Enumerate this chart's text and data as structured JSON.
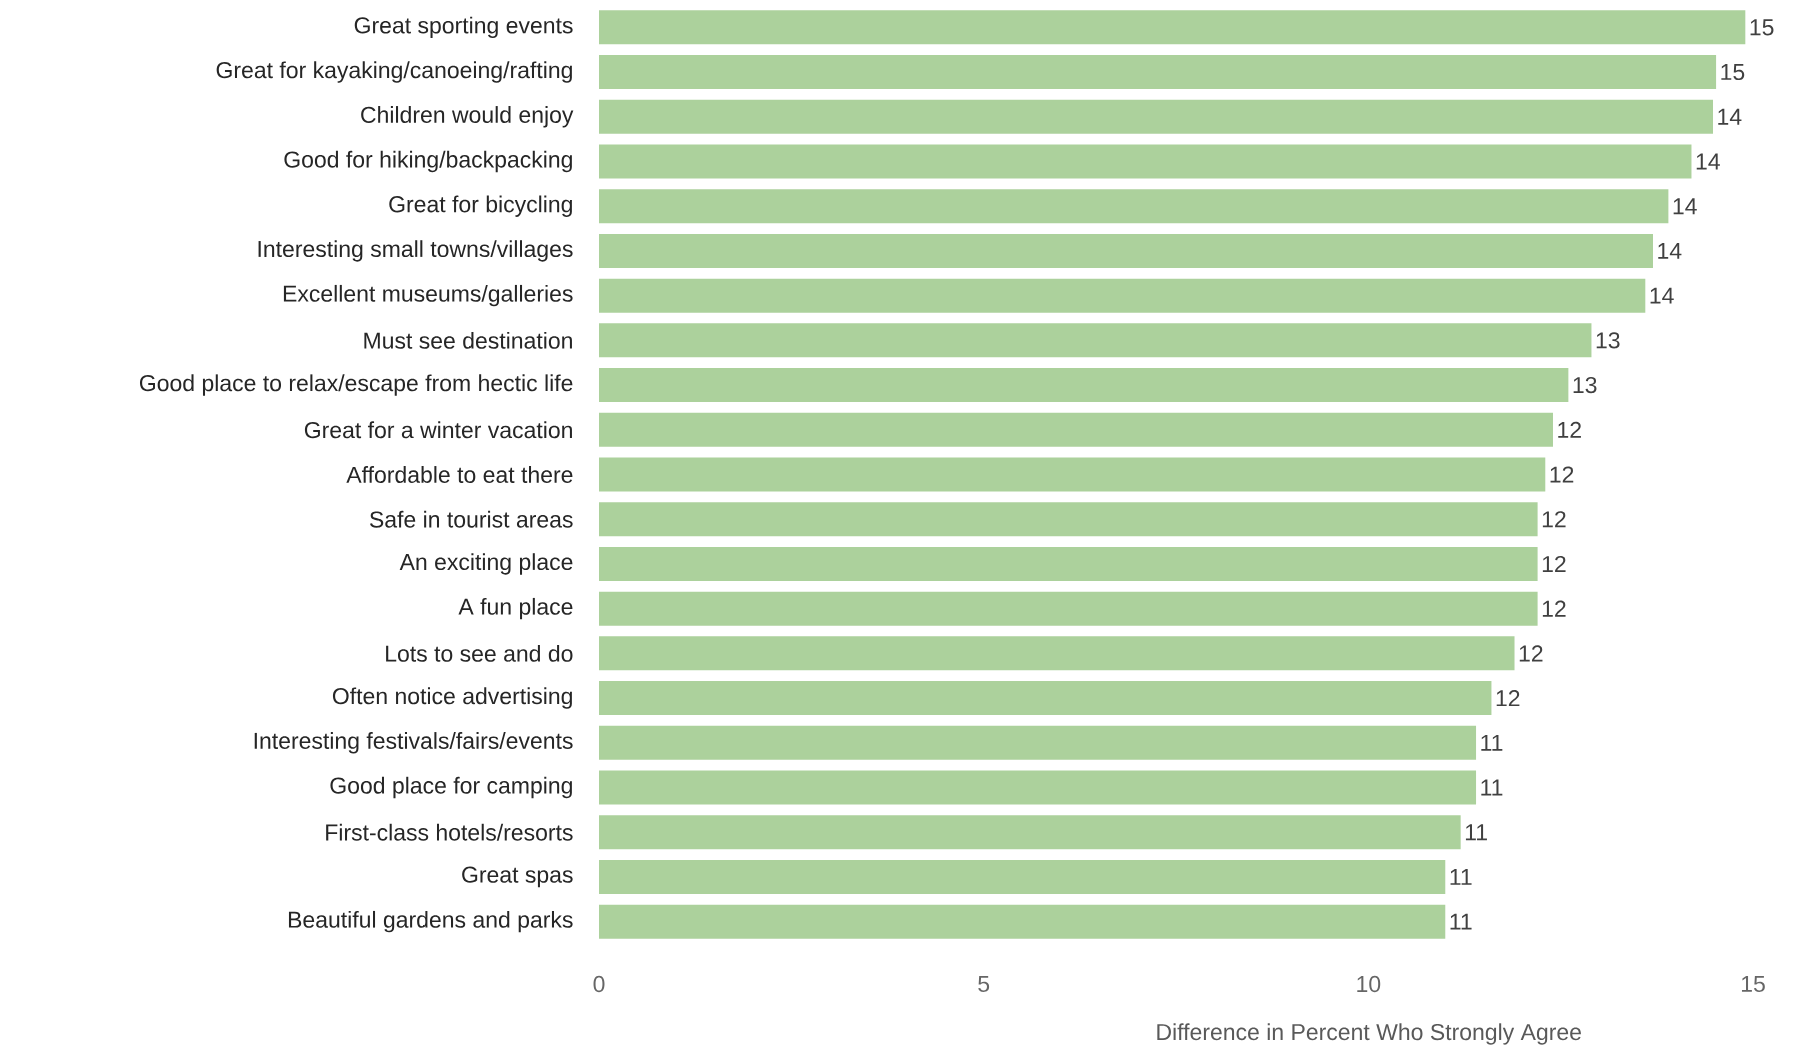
{
  "chart_data": {
    "type": "bar",
    "orientation": "horizontal",
    "xlabel": "Difference in Percent Who Strongly Agree",
    "categories": [
      "Great sporting events",
      "Great for kayaking/canoeing/rafting",
      "Children would enjoy",
      "Good for hiking/backpacking",
      "Great for bicycling",
      "Interesting small towns/villages",
      "Excellent museums/galleries",
      "Must see destination",
      "Good place to relax/escape from hectic life",
      "Great for a winter vacation",
      "Affordable to eat there",
      "Safe in tourist areas",
      "An exciting place",
      "A fun place",
      "Lots to see and do",
      "Often notice advertising",
      "Interesting festivals/fairs/events",
      "Good place for camping",
      "First-class hotels/resorts",
      "Great spas",
      "Beautiful gardens and parks"
    ],
    "values": [
      14.9,
      14.52,
      14.48,
      14.2,
      13.9,
      13.7,
      13.6,
      12.9,
      12.6,
      12.4,
      12.3,
      12.2,
      12.2,
      12.2,
      11.9,
      11.6,
      11.4,
      11.4,
      11.2,
      11.0,
      11.0
    ],
    "value_labels": [
      "15",
      "15",
      "14",
      "14",
      "14",
      "14",
      "14",
      "13",
      "13",
      "12",
      "12",
      "12",
      "12",
      "12",
      "12",
      "12",
      "11",
      "11",
      "11",
      "11",
      "11"
    ],
    "color": "#acd19c",
    "xlim": [
      0,
      15
    ],
    "xticks": [
      0,
      5,
      10,
      15
    ]
  }
}
